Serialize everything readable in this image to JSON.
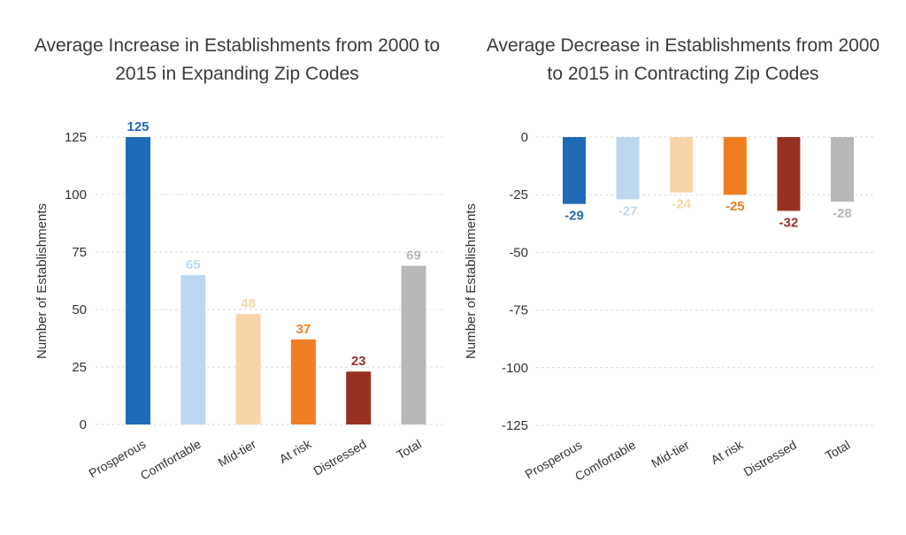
{
  "chart_data": [
    {
      "type": "bar",
      "title": "Average Increase in Establishments from 2000 to 2015 in Expanding Zip Codes",
      "ylabel": "Number of Establishments",
      "categories": [
        "Prosperous",
        "Comfortable",
        "Mid-tier",
        "At risk",
        "Distressed",
        "Total"
      ],
      "values": [
        125,
        65,
        48,
        37,
        23,
        69
      ],
      "value_labels": [
        "125",
        "65",
        "48",
        "37",
        "23",
        "69"
      ],
      "ylim": [
        0,
        125
      ],
      "yticks": [
        0,
        25,
        50,
        75,
        100,
        125
      ],
      "grid": true,
      "colors": [
        "#1f6bb8",
        "#bdd7ee",
        "#f8d5a9",
        "#f17e22",
        "#973223",
        "#b8b8b8"
      ]
    },
    {
      "type": "bar",
      "title": "Average Decrease in Establishments from 2000 to 2015 in Contracting Zip Codes",
      "ylabel": "Number of Establishments",
      "categories": [
        "Prosperous",
        "Comfortable",
        "Mid-tier",
        "At risk",
        "Distressed",
        "Total"
      ],
      "values": [
        -29,
        -27,
        -24,
        -25,
        -32,
        -28
      ],
      "value_labels": [
        "-29",
        "-27",
        "-24",
        "-25",
        "-32",
        "-28"
      ],
      "ylim": [
        -125,
        0
      ],
      "yticks": [
        0,
        -25,
        -50,
        -75,
        -100,
        -125
      ],
      "grid": true,
      "colors": [
        "#1f6bb8",
        "#bdd7ee",
        "#f8d5a9",
        "#f17e22",
        "#973223",
        "#b8b8b8"
      ]
    }
  ]
}
